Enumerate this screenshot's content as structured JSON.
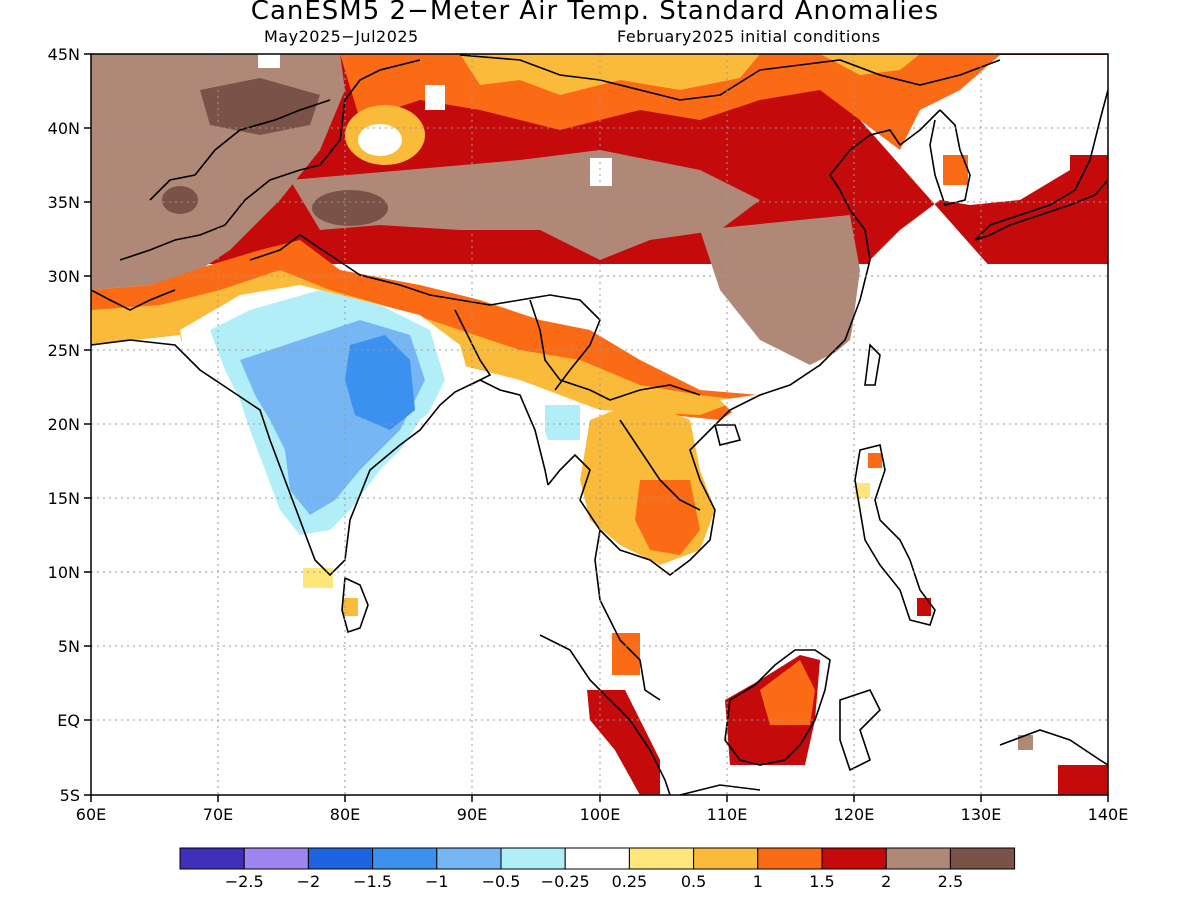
{
  "title": "CanESM5 2−Meter Air Temp. Standard Anomalies",
  "period": "May2025−Jul2025",
  "init": "February2025 initial conditions",
  "lat_labels": [
    "45N",
    "40N",
    "35N",
    "30N",
    "25N",
    "20N",
    "15N",
    "10N",
    "5N",
    "EQ",
    "5S"
  ],
  "lon_labels": [
    "60E",
    "70E",
    "80E",
    "90E",
    "100E",
    "110E",
    "120E",
    "130E",
    "140E"
  ],
  "colorbar": {
    "colors": [
      "#3f2fbd",
      "#9d85f2",
      "#1e64e0",
      "#3c90f0",
      "#77b6f5",
      "#b1eef8",
      "#ffffff",
      "#ffe67a",
      "#fbbb3a",
      "#fb6a14",
      "#c40a0a",
      "#b08878",
      "#7a5248"
    ],
    "labels": [
      "−2.5",
      "−2",
      "−1.5",
      "−1",
      "−0.5",
      "−0.25",
      "0.25",
      "0.5",
      "1",
      "1.5",
      "2",
      "2.5"
    ]
  }
}
